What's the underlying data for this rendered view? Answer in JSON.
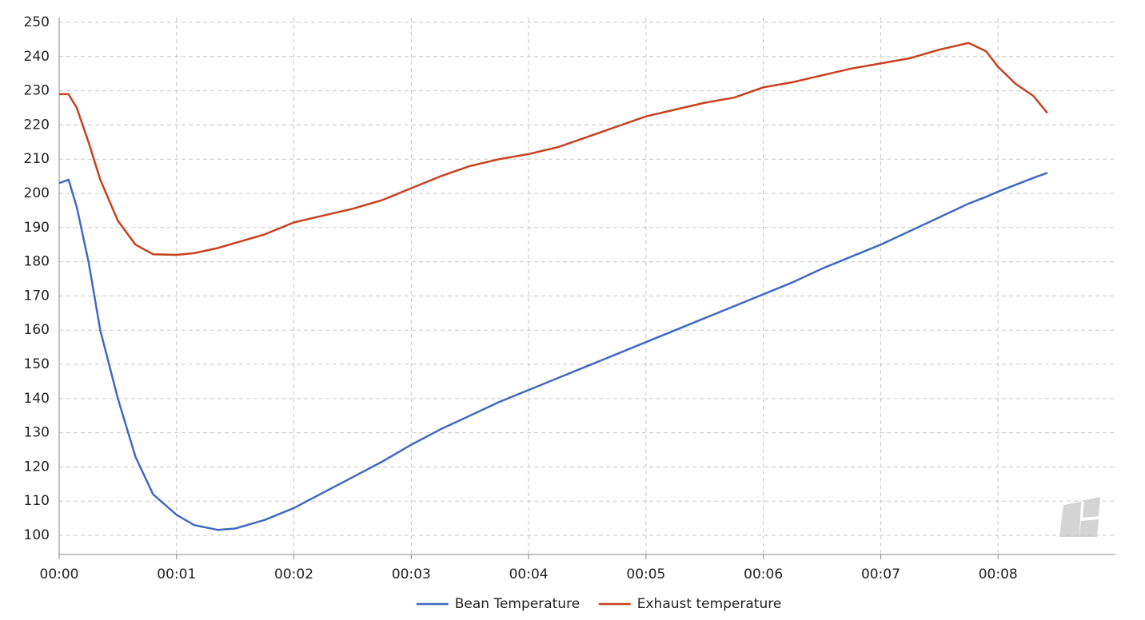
{
  "chart_data": {
    "type": "line",
    "x": [
      0,
      0.08,
      0.15,
      0.25,
      0.35,
      0.5,
      0.65,
      0.8,
      1.0,
      1.15,
      1.35,
      1.5,
      1.75,
      2,
      2.25,
      2.5,
      2.75,
      3,
      3.25,
      3.5,
      3.75,
      4,
      4.25,
      4.5,
      4.75,
      5,
      5.25,
      5.5,
      5.75,
      6,
      6.25,
      6.5,
      6.75,
      7,
      7.25,
      7.5,
      7.75,
      7.9,
      8.0,
      8.15,
      8.3,
      8.42
    ],
    "series": [
      {
        "name": "Bean Temperature",
        "color": "#4169c4",
        "values": [
          203,
          204,
          196,
          180,
          160,
          140,
          123,
          112,
          106,
          103,
          101.6,
          102,
          104.5,
          108,
          112.5,
          117,
          121.5,
          126.5,
          131,
          135,
          139,
          142.5,
          146,
          149.5,
          153,
          156.5,
          160,
          163.5,
          167,
          170.5,
          174,
          178,
          181.5,
          185,
          189,
          193,
          197,
          199,
          200.5,
          202.5,
          204.5,
          206
        ]
      },
      {
        "name": "Exhaust temperature",
        "color": "#c8401e",
        "values": [
          229,
          229,
          225,
          215,
          204,
          192,
          185,
          182.2,
          182,
          182.5,
          184,
          185.5,
          188,
          191.5,
          193.5,
          195.5,
          198,
          201.5,
          205,
          208,
          210,
          211.5,
          213.5,
          216.5,
          219.5,
          222.5,
          224.5,
          226.5,
          228,
          231,
          232.5,
          234.5,
          236.5,
          238,
          239.5,
          242,
          244,
          241.5,
          237,
          232,
          228.5,
          223.5
        ]
      }
    ],
    "xlim": [
      0,
      9
    ],
    "xticks": [
      {
        "value": 0,
        "label": "00:00"
      },
      {
        "value": 1,
        "label": "00:01"
      },
      {
        "value": 2,
        "label": "00:02"
      },
      {
        "value": 3,
        "label": "00:03"
      },
      {
        "value": 4,
        "label": "00:04"
      },
      {
        "value": 5,
        "label": "00:05"
      },
      {
        "value": 6,
        "label": "00:06"
      },
      {
        "value": 7,
        "label": "00:07"
      },
      {
        "value": 8,
        "label": "00:08"
      }
    ],
    "ylim": [
      94.4,
      251.4
    ],
    "yticks": [
      100,
      110,
      120,
      130,
      140,
      150,
      160,
      170,
      180,
      190,
      200,
      210,
      220,
      230,
      240,
      250
    ],
    "grid": true,
    "legend": "bottom"
  }
}
